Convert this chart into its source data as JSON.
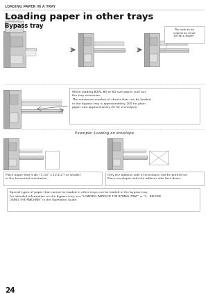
{
  "bg_color": "#ffffff",
  "header_text": "LOADING PAPER IN A TRAY",
  "title": "Loading paper in other trays",
  "subtitle": "Bypass tray",
  "page_number": "24",
  "note_box_text": "When loading A3W, A3 or B4 size paper, pull out\nthe tray extension.\nThe maximum number of sheets that can be loaded\nin the bypass tray is approximately 100 for plain\npaper and approximately 20 for envelopes.",
  "callout_text": "The side to be\ncopied on must\nbe face down!",
  "example_label": "Example: Loading an envelope",
  "left_caption": "Place paper that is A5 (7-1/4\" x 10-1/2\") or smaller\nin the horizontal orientation.",
  "right_caption": "Only the address side of envelopes can be printed on.\nPlace envelopes with the address side face down.",
  "special_note": "Special types of paper that cannot be loaded in other trays can be loaded in the bypass tray.\nFor detailed information on the bypass tray, see \"LOADING PAPER IN THE BYPASS TRAY\" in \"1.  BEFORE\nUSING THE MACHINE\" in the Operation Guide.",
  "line_color": "#bbbbbb",
  "dot_line_color": "#bbbbbb",
  "machine_color": "#cccccc",
  "machine_dark": "#888888",
  "paper_color": "#f0f0f0",
  "text_color": "#333333",
  "box_border": "#aaaaaa"
}
